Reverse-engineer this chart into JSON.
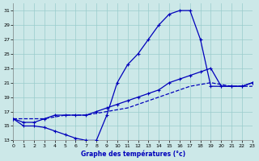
{
  "title": "Graphe des températures (°c)",
  "bg_color": "#cce8e8",
  "line_color": "#0000bb",
  "grid_color": "#99cccc",
  "xlim": [
    0,
    23
  ],
  "ylim": [
    13,
    32
  ],
  "ytick_vals": [
    13,
    15,
    17,
    19,
    21,
    23,
    25,
    27,
    29,
    31
  ],
  "xtick_vals": [
    0,
    1,
    2,
    3,
    4,
    5,
    6,
    7,
    8,
    9,
    10,
    11,
    12,
    13,
    14,
    15,
    16,
    17,
    18,
    19,
    20,
    21,
    22,
    23
  ],
  "line1_x": [
    0,
    1,
    2,
    3,
    4,
    5,
    6,
    7,
    8,
    9,
    10,
    11,
    12,
    13,
    14,
    15,
    16,
    17,
    18,
    19,
    20,
    21,
    22,
    23
  ],
  "line1_y": [
    16,
    15,
    15,
    14.8,
    14.3,
    13.8,
    13.3,
    13,
    13,
    16.5,
    21,
    23.5,
    25,
    27,
    29,
    30.5,
    31,
    31,
    27,
    20.5,
    20.5,
    20.5,
    20.5,
    21
  ],
  "line2_x": [
    0,
    1,
    2,
    3,
    4,
    5,
    6,
    7,
    8,
    9,
    10,
    11,
    12,
    13,
    14,
    15,
    16,
    17,
    18,
    19,
    20,
    21,
    22,
    23
  ],
  "line2_y": [
    16,
    15.5,
    15.5,
    16,
    16.5,
    16.5,
    16.5,
    16.5,
    17,
    17.5,
    18,
    18.5,
    19,
    19.5,
    20,
    21,
    21.5,
    22,
    22.5,
    23,
    20.5,
    20.5,
    20.5,
    21
  ],
  "line3_x": [
    0,
    3,
    5,
    7,
    9,
    11,
    13,
    15,
    17,
    19,
    21,
    23
  ],
  "line3_y": [
    16,
    16,
    16.5,
    16.5,
    17,
    17.5,
    18.5,
    19.5,
    20.5,
    21,
    20.5,
    20.5
  ]
}
